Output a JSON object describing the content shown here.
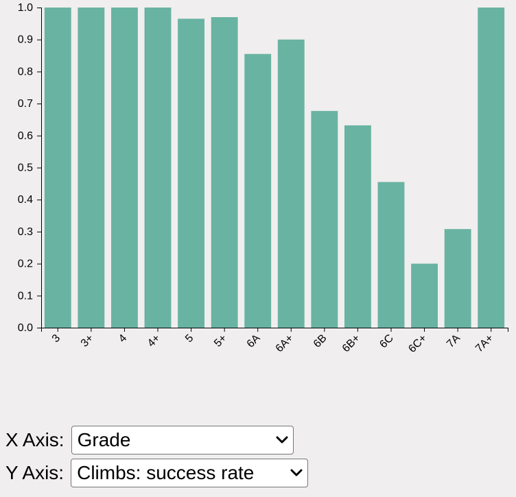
{
  "chart_data": {
    "type": "bar",
    "categories": [
      "3",
      "3+",
      "4",
      "4+",
      "5",
      "5+",
      "6A",
      "6A+",
      "6B",
      "6B+",
      "6C",
      "6C+",
      "7A",
      "7A+"
    ],
    "values": [
      1.0,
      1.0,
      1.0,
      1.0,
      0.965,
      0.97,
      0.855,
      0.9,
      0.677,
      0.632,
      0.455,
      0.2,
      0.308,
      1.0
    ],
    "ylim": [
      0,
      1.0
    ],
    "yticks": [
      "0.0",
      "0.1",
      "0.2",
      "0.3",
      "0.4",
      "0.5",
      "0.6",
      "0.7",
      "0.8",
      "0.9",
      "1.0"
    ],
    "bar_color": "#69b3a2",
    "grid": false
  },
  "controls": {
    "x_axis": {
      "label": "X Axis:",
      "selected": "Grade"
    },
    "y_axis": {
      "label": "Y Axis:",
      "selected": "Climbs: success rate"
    }
  }
}
